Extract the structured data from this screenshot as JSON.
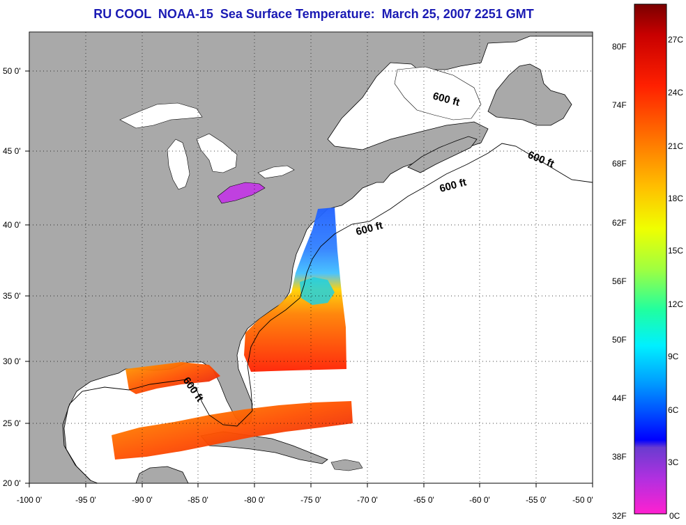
{
  "title": "RU COOL  NOAA-15  Sea Surface Temperature:  March 25, 2007 2251 GMT",
  "latitude_labels": [
    "50 0'",
    "45 0'",
    "40 0'",
    "35 0'",
    "30 0'",
    "25 0'",
    "20 0'"
  ],
  "longitude_labels": [
    "-100 0'",
    "-95 0'",
    "-90 0'",
    "-85 0'",
    "-80 0'",
    "-75 0'",
    "-70 0'",
    "-65 0'",
    "-60 0'",
    "-55 0'",
    "-50 0'"
  ],
  "isobath_labels": [
    "600 ft",
    "600 ft",
    "600 ft",
    "600 ft",
    "600 ft"
  ],
  "colorbar": {
    "fahrenheit_labels": [
      "80F",
      "74F",
      "68F",
      "62F",
      "56F",
      "50F",
      "44F",
      "38F",
      "32F"
    ],
    "celsius_labels": [
      "27C",
      "24C",
      "21C",
      "18C",
      "15C",
      "12C",
      "9C",
      "6C",
      "3C",
      "0C"
    ]
  },
  "colors": {
    "land": "#a9a9a9",
    "cloud_or_no_data": "#ffffff",
    "title": "#1a1ab4"
  }
}
